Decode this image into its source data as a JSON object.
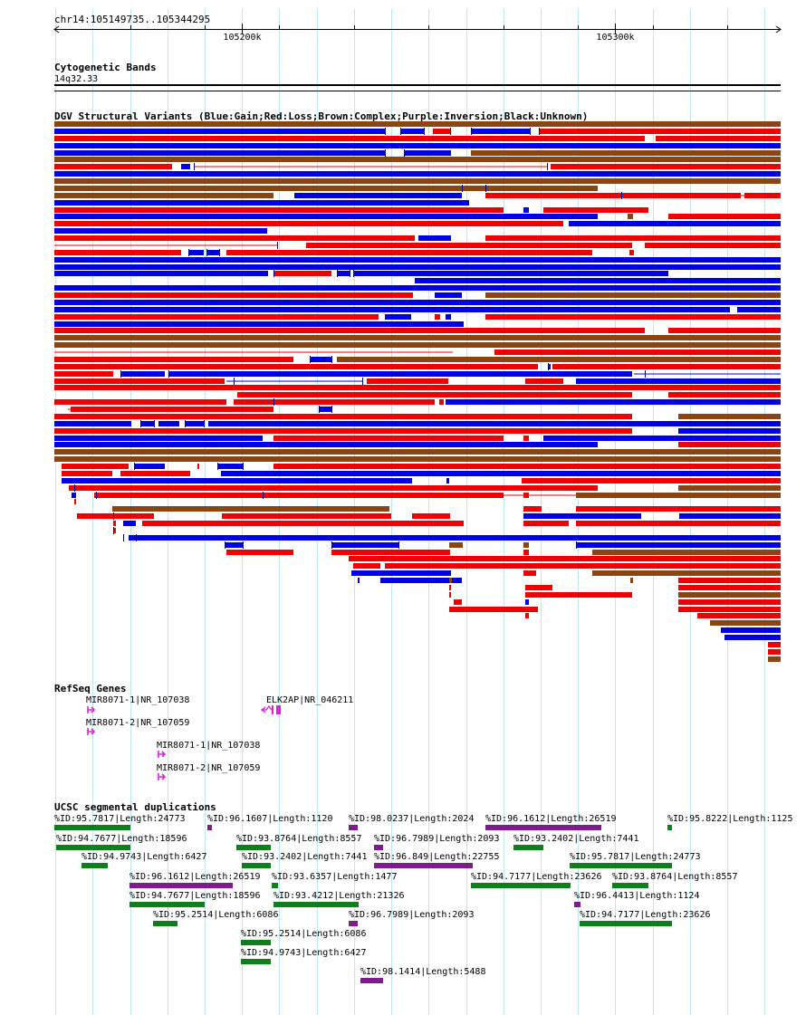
{
  "ruler": {
    "location": "chr14:105149735..105344295",
    "start": 105149735,
    "end": 105344295,
    "ticks": [
      {
        "pos": 105200000,
        "label": "105200k"
      },
      {
        "pos": 105300000,
        "label": "105300k"
      }
    ],
    "minor_ticks": [
      105170000,
      105190000,
      105210000,
      105230000,
      105250000,
      105270000,
      105290000,
      105310000,
      105330000
    ]
  },
  "cyto": {
    "title": "Cytogenetic Bands",
    "band": "14q32.33"
  },
  "dgv": {
    "title": "DGV Structural Variants (Blue:Gain;Red:Loss;Brown:Complex;Purple:Inversion;Black:Unknown)",
    "colors": {
      "gain": "#0000e6",
      "loss": "#f00000",
      "complex": "#8b4513",
      "inversion": "#800080",
      "unknown": "#000000",
      "connector": "#f00000"
    }
  },
  "refseq": {
    "title": "RefSeq Genes",
    "genes": [
      {
        "label": "MIR8071-1|NR_107038",
        "color": "#e020e0"
      },
      {
        "label": "ELK2AP|NR_046211",
        "color": "#e020e0"
      },
      {
        "label": "MIR8071-2|NR_107059",
        "color": "#e020e0"
      },
      {
        "label": "MIR8071-1|NR_107038",
        "color": "#e020e0"
      },
      {
        "label": "MIR8071-2|NR_107059",
        "color": "#e020e0"
      }
    ]
  },
  "segdup": {
    "title": "UCSC segmental duplications",
    "colors": {
      "green": "#0f7f1a",
      "purple": "#7d1d8c"
    },
    "items": [
      {
        "label": "%ID:95.7817|Length:24773",
        "color": "green"
      },
      {
        "label": "%ID:96.1607|Length:1120",
        "color": "purple"
      },
      {
        "label": "%ID:98.0237|Length:2024",
        "color": "purple"
      },
      {
        "label": "%ID:96.1612|Length:26519",
        "color": "purple"
      },
      {
        "label": "%ID:95.8222|Length:1125",
        "color": "green"
      },
      {
        "label": "%ID:94.7677|Length:18596",
        "color": "green"
      },
      {
        "label": "%ID:93.8764|Length:8557",
        "color": "green"
      },
      {
        "label": "%ID:96.7989|Length:2093",
        "color": "purple"
      },
      {
        "label": "%ID:93.2402|Length:7441",
        "color": "green"
      },
      {
        "label": "%ID:94.9743|Length:6427",
        "color": "green"
      },
      {
        "label": "%ID:93.2402|Length:7441",
        "color": "green"
      },
      {
        "label": "%ID:96.849|Length:22755",
        "color": "purple"
      },
      {
        "label": "%ID:95.7817|Length:24773",
        "color": "green"
      },
      {
        "label": "%ID:96.1612|Length:26519",
        "color": "purple"
      },
      {
        "label": "%ID:93.6357|Length:1477",
        "color": "green"
      },
      {
        "label": "%ID:94.7177|Length:23626",
        "color": "green"
      },
      {
        "label": "%ID:93.8764|Length:8557",
        "color": "green"
      },
      {
        "label": "%ID:94.7677|Length:18596",
        "color": "green"
      },
      {
        "label": "%ID:93.4212|Length:21326",
        "color": "green"
      },
      {
        "label": "%ID:96.4413|Length:1124",
        "color": "purple"
      },
      {
        "label": "%ID:95.2514|Length:6086",
        "color": "green"
      },
      {
        "label": "%ID:96.7989|Length:2093",
        "color": "purple"
      },
      {
        "label": "%ID:94.7177|Length:23626",
        "color": "green"
      },
      {
        "label": "%ID:95.2514|Length:6086",
        "color": "green"
      },
      {
        "label": "%ID:94.9743|Length:6427",
        "color": "green"
      },
      {
        "label": "%ID:98.1414|Length:5488",
        "color": "purple"
      }
    ]
  }
}
